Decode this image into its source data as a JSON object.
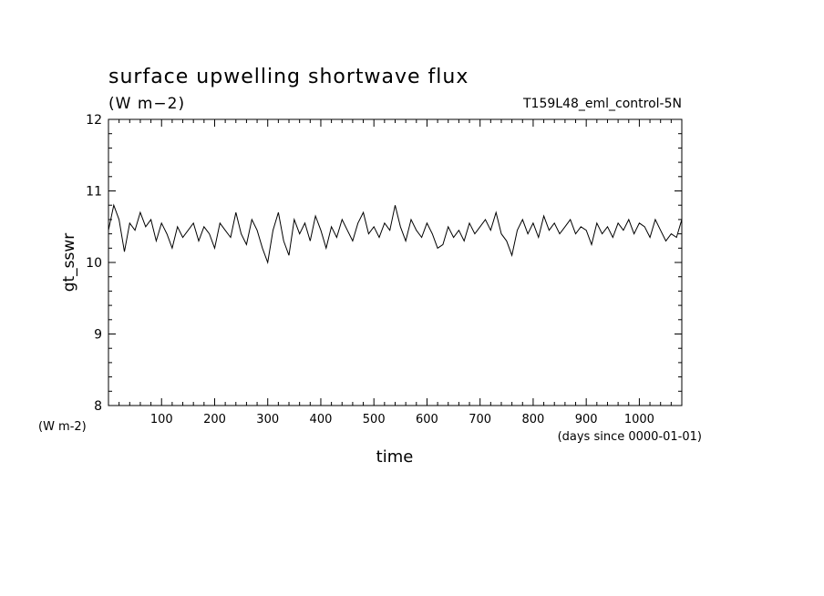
{
  "chart_data": {
    "type": "line",
    "title": "surface upwelling shortwave flux",
    "subtitle": "(W m−2)",
    "run_label": "T159L48_eml_control-5N",
    "xlabel": "time",
    "xunits": "(days since 0000-01-01)",
    "ylabel": "gt_sswr",
    "yunits": "(W m-2)",
    "xlim": [
      0,
      1080
    ],
    "ylim": [
      8,
      12
    ],
    "xticks": [
      100,
      200,
      300,
      400,
      500,
      600,
      700,
      800,
      900,
      1000
    ],
    "xtick_labels": [
      "100",
      "200",
      "300",
      "400",
      "500",
      "600",
      "700",
      "800",
      "900",
      "1000"
    ],
    "yticks": [
      8,
      9,
      10,
      11,
      12
    ],
    "ytick_labels": [
      "8",
      "9",
      "10",
      "11",
      "12"
    ],
    "grid": false,
    "line_color": "#000000",
    "series": [
      {
        "x": [
          0,
          10,
          20,
          30,
          40,
          50,
          60,
          70,
          80,
          90,
          100,
          110,
          120,
          130,
          140,
          150,
          160,
          170,
          180,
          190,
          200,
          210,
          220,
          230,
          240,
          250,
          260,
          270,
          280,
          290,
          300,
          310,
          320,
          330,
          340,
          350,
          360,
          370,
          380,
          390,
          400,
          410,
          420,
          430,
          440,
          450,
          460,
          470,
          480,
          490,
          500,
          510,
          520,
          530,
          540,
          550,
          560,
          570,
          580,
          590,
          600,
          610,
          620,
          630,
          640,
          650,
          660,
          670,
          680,
          690,
          700,
          710,
          720,
          730,
          740,
          750,
          760,
          770,
          780,
          790,
          800,
          810,
          820,
          830,
          840,
          850,
          860,
          870,
          880,
          890,
          900,
          910,
          920,
          930,
          940,
          950,
          960,
          970,
          980,
          990,
          1000,
          1010,
          1020,
          1030,
          1040,
          1050,
          1060,
          1070,
          1080
        ],
        "values": [
          10.45,
          10.8,
          10.6,
          10.15,
          10.55,
          10.45,
          10.7,
          10.5,
          10.6,
          10.3,
          10.55,
          10.4,
          10.2,
          10.5,
          10.35,
          10.45,
          10.55,
          10.3,
          10.5,
          10.4,
          10.2,
          10.55,
          10.45,
          10.35,
          10.7,
          10.4,
          10.25,
          10.6,
          10.45,
          10.2,
          10.0,
          10.45,
          10.7,
          10.3,
          10.1,
          10.6,
          10.4,
          10.55,
          10.3,
          10.65,
          10.45,
          10.2,
          10.5,
          10.35,
          10.6,
          10.45,
          10.3,
          10.55,
          10.7,
          10.4,
          10.5,
          10.35,
          10.55,
          10.45,
          10.8,
          10.5,
          10.3,
          10.6,
          10.45,
          10.35,
          10.55,
          10.4,
          10.2,
          10.25,
          10.5,
          10.35,
          10.45,
          10.3,
          10.55,
          10.4,
          10.5,
          10.6,
          10.45,
          10.7,
          10.4,
          10.3,
          10.1,
          10.45,
          10.6,
          10.4,
          10.55,
          10.35,
          10.65,
          10.45,
          10.55,
          10.4,
          10.5,
          10.6,
          10.4,
          10.5,
          10.45,
          10.25,
          10.55,
          10.4,
          10.5,
          10.35,
          10.55,
          10.45,
          10.6,
          10.4,
          10.55,
          10.5,
          10.35,
          10.6,
          10.45,
          10.3,
          10.4,
          10.35,
          10.6
        ]
      }
    ]
  }
}
